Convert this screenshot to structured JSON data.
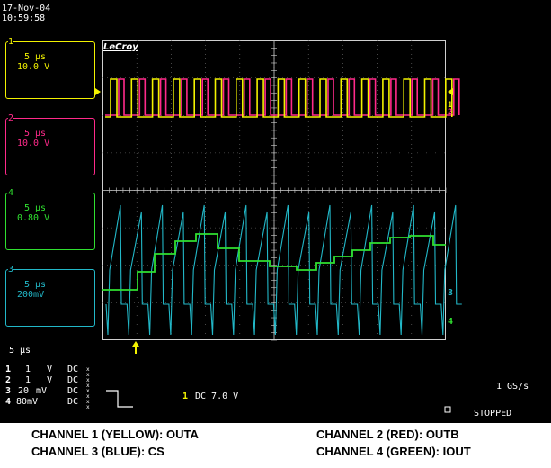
{
  "header": {
    "date": "17-Nov-04",
    "time": "10:59:58"
  },
  "brand": {
    "logo": "LeCroy"
  },
  "channels": [
    {
      "num": "1",
      "timebase": "5 µs",
      "scale": "10.0 V",
      "color": "#f2f200"
    },
    {
      "num": "2",
      "timebase": "5 µs",
      "scale": "10.0 V",
      "color": "#ff2a8a"
    },
    {
      "num": "4",
      "timebase": "5 µs",
      "scale": "0.80 V",
      "color": "#30e030"
    },
    {
      "num": "3",
      "timebase": "5 µs",
      "scale": "200mV",
      "color": "#22b8c8"
    }
  ],
  "markers": {
    "ch3": "3",
    "ch4": "4",
    "ch1": "1",
    "ch2": "2"
  },
  "footer": {
    "timebase": "5 µs",
    "rows": [
      {
        "num": "1",
        "val": "1",
        "unit": "V",
        "coupling": "DC"
      },
      {
        "num": "2",
        "val": "1",
        "unit": "V",
        "coupling": "DC"
      },
      {
        "num": "3",
        "val": "20",
        "unit": "mV",
        "coupling": "DC"
      },
      {
        "num": "4",
        "val": "80",
        "unit": "mV",
        "coupling": "DC"
      }
    ],
    "trigger_ch": "1",
    "trigger": "DC 7.0 V",
    "rate": "1 GS/s",
    "status": "STOPPED"
  },
  "captions": {
    "ch1": "CHANNEL 1 (YELLOW): OUTA",
    "ch2": "CHANNEL 2 (RED): OUTB",
    "ch3": "CHANNEL 3 (BLUE): CS",
    "ch4": "CHANNEL 4 (GREEN): IOUT"
  }
}
